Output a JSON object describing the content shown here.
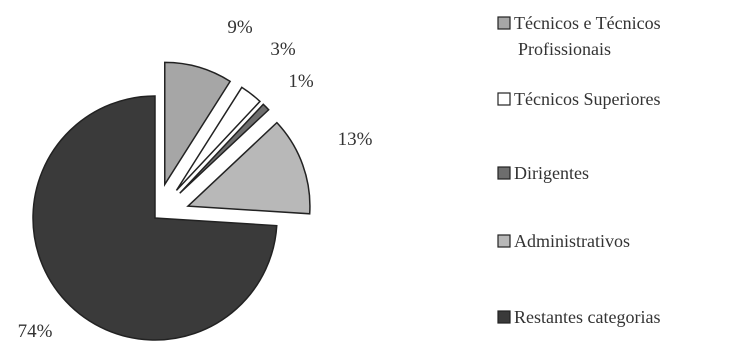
{
  "chart_data": {
    "type": "pie",
    "exploded": true,
    "legend_position": "right",
    "slices": [
      {
        "label": "Técnicos e Técnicos Profissionais",
        "legend_lines": [
          "Técnicos e Técnicos",
          "Profissionais"
        ],
        "value": 9,
        "value_label": "9%",
        "color": "#a6a6a6"
      },
      {
        "label": "Técnicos Superiores",
        "legend_lines": [
          "Técnicos Superiores"
        ],
        "value": 3,
        "value_label": "3%",
        "color": "#ffffff"
      },
      {
        "label": "Dirigentes",
        "legend_lines": [
          "Dirigentes"
        ],
        "value": 1,
        "value_label": "1%",
        "color": "#6e6e6e"
      },
      {
        "label": "Administrativos",
        "legend_lines": [
          "Administrativos"
        ],
        "value": 13,
        "value_label": "13%",
        "color": "#b8b8b8"
      },
      {
        "label": "Restantes categorias",
        "legend_lines": [
          "Restantes categorias"
        ],
        "value": 74,
        "value_label": "74%",
        "color": "#3a3a3a"
      }
    ]
  }
}
